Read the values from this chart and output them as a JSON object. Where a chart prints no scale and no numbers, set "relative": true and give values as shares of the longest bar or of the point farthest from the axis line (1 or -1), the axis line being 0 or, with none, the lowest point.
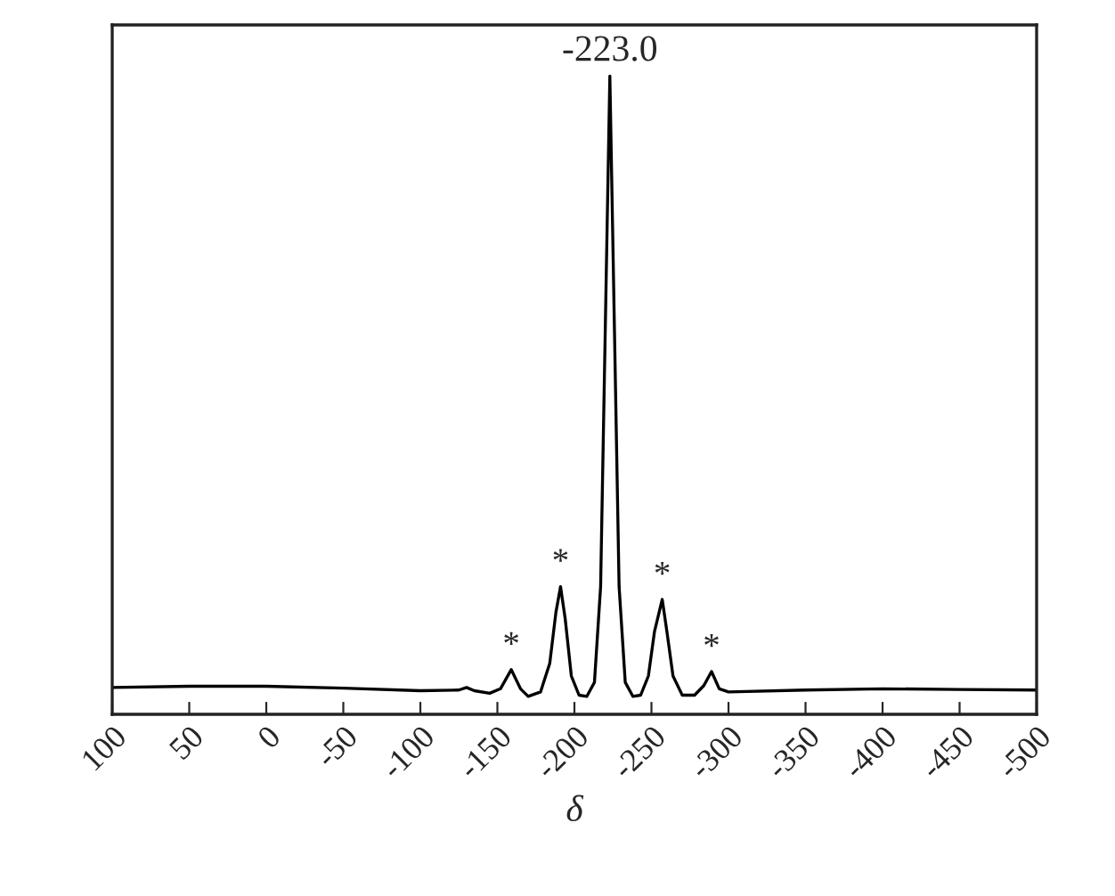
{
  "chart_data": {
    "type": "line",
    "relative": true,
    "xlabel": "δ",
    "tick_labels": "x",
    "grid": false,
    "xlim": [
      100,
      -500
    ],
    "xticks": [
      100,
      50,
      0,
      -50,
      -100,
      -150,
      -200,
      -250,
      -300,
      -350,
      -400,
      -450,
      -500
    ],
    "series": [
      {
        "color": "#000000",
        "line_style": "solid",
        "x": [
          100,
          50,
          0,
          -50,
          -100,
          -125,
          -130,
          -135,
          -145,
          -152,
          -159,
          -165,
          -170,
          -178,
          -184,
          -188,
          -191,
          -194,
          -198,
          -203,
          -208,
          -213,
          -217,
          -220,
          -223,
          -226,
          -229,
          -233,
          -238,
          -243,
          -248,
          -252,
          -257,
          -260,
          -264,
          -270,
          -278,
          -284,
          -289,
          -294,
          -300,
          -350,
          -400,
          -450,
          -500
        ],
        "values": [
          0.042,
          0.044,
          0.044,
          0.041,
          0.037,
          0.038,
          0.042,
          0.037,
          0.033,
          0.04,
          0.07,
          0.04,
          0.028,
          0.035,
          0.08,
          0.16,
          0.2,
          0.15,
          0.06,
          0.03,
          0.028,
          0.05,
          0.2,
          0.6,
          1.0,
          0.6,
          0.2,
          0.05,
          0.028,
          0.03,
          0.06,
          0.13,
          0.18,
          0.13,
          0.06,
          0.03,
          0.03,
          0.045,
          0.067,
          0.04,
          0.035,
          0.038,
          0.04,
          0.039,
          0.038
        ]
      }
    ],
    "annotations": [
      {
        "text": "-223.0",
        "x": -223,
        "y": 1.0
      },
      {
        "text": "*",
        "x": -159,
        "y": 0.07
      },
      {
        "text": "*",
        "x": -191,
        "y": 0.2
      },
      {
        "text": "*",
        "x": -257,
        "y": 0.18
      },
      {
        "text": "*",
        "x": -289,
        "y": 0.067
      }
    ]
  }
}
